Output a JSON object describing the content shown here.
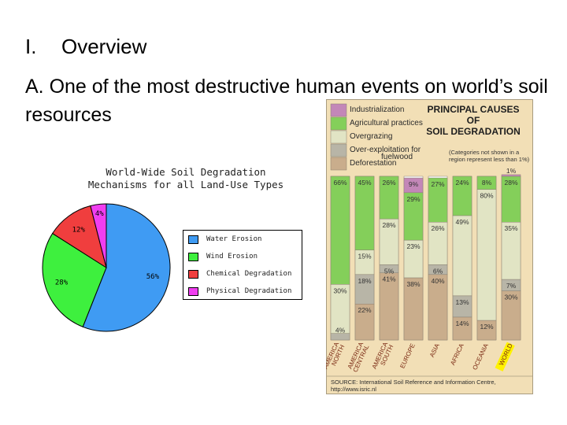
{
  "slide": {
    "heading_num": "I.",
    "heading_text": "Overview",
    "subheading": "A. One of the most destructive human events on world’s soil resources"
  },
  "chart_data": [
    {
      "type": "pie",
      "title": "World-Wide Soil Degradation",
      "subtitle": "Mechanisms for all Land-Use Types",
      "slices": [
        {
          "label": "Water Erosion",
          "value": 56,
          "display": "56%",
          "color": "#3f9bf3"
        },
        {
          "label": "Wind Erosion",
          "value": 28,
          "display": "28%",
          "color": "#3ef03e"
        },
        {
          "label": "Chemical Degradation",
          "value": 12,
          "display": "12%",
          "color": "#f03e3e"
        },
        {
          "label": "Physical Degradation",
          "value": 4,
          "display": "4%",
          "color": "#f03ef0"
        }
      ],
      "legend_position": "right"
    },
    {
      "type": "bar",
      "stacked": true,
      "percent_scale": true,
      "title": "PRINCIPAL CAUSES OF SOIL DEGRADATION",
      "title_lines": [
        "PRINCIPAL CAUSES",
        "OF",
        "SOIL DEGRADATION"
      ],
      "note_lines": [
        "(Categories not shown in a",
        "region represent less than 1%)"
      ],
      "source_lines": [
        "SOURCE: International Soil Reference and Information Centre,",
        "http://www.isric.nl"
      ],
      "background": "#f2dfb6",
      "categories": [
        "NORTH AMERICA",
        "CENTRAL AMERICA",
        "SOUTH AMERICA",
        "EUROPE",
        "ASIA",
        "AFRICA",
        "OCEANIA",
        "WORLD"
      ],
      "category_lines": [
        [
          "NORTH",
          "AMERICA"
        ],
        [
          "CENTRAL",
          "AMERICA"
        ],
        [
          "SOUTH",
          "AMERICA"
        ],
        [
          "EUROPE"
        ],
        [
          "ASIA"
        ],
        [
          "AFRICA"
        ],
        [
          "OCEANIA"
        ],
        [
          "WORLD"
        ]
      ],
      "highlight_category": "WORLD",
      "highlight_color": "#fff200",
      "series": [
        {
          "name": "Deforestation",
          "color": "#c9ad8c",
          "values": [
            0,
            22,
            41,
            38,
            40,
            14,
            12,
            30
          ]
        },
        {
          "name": "Over-exploitation for fuelwood",
          "color": "#b8b5a7",
          "values": [
            4,
            18,
            5,
            0,
            6,
            13,
            0,
            7
          ]
        },
        {
          "name": "Overgrazing",
          "color": "#e1e4c4",
          "values": [
            30,
            15,
            28,
            23,
            26,
            49,
            80,
            35
          ]
        },
        {
          "name": "Agricultural practices",
          "color": "#84cf5a",
          "values": [
            66,
            45,
            26,
            29,
            27,
            24,
            8,
            28
          ]
        },
        {
          "name": "Industrialization",
          "color": "#c387b8",
          "values": [
            0,
            0,
            0,
            9,
            0,
            0,
            0,
            1
          ]
        }
      ],
      "legend_items": [
        {
          "lines": [
            "Industrialization"
          ],
          "color": "#c387b8"
        },
        {
          "lines": [
            "Agricultural practices"
          ],
          "color": "#84cf5a"
        },
        {
          "lines": [
            "Overgrazing"
          ],
          "color": "#e1e4c4"
        },
        {
          "lines": [
            "Over-exploitation for",
            "fuelwood"
          ],
          "color": "#b8b5a7"
        },
        {
          "lines": [
            "Deforestation"
          ],
          "color": "#c9ad8c"
        }
      ],
      "legend_position": "top-left"
    }
  ]
}
